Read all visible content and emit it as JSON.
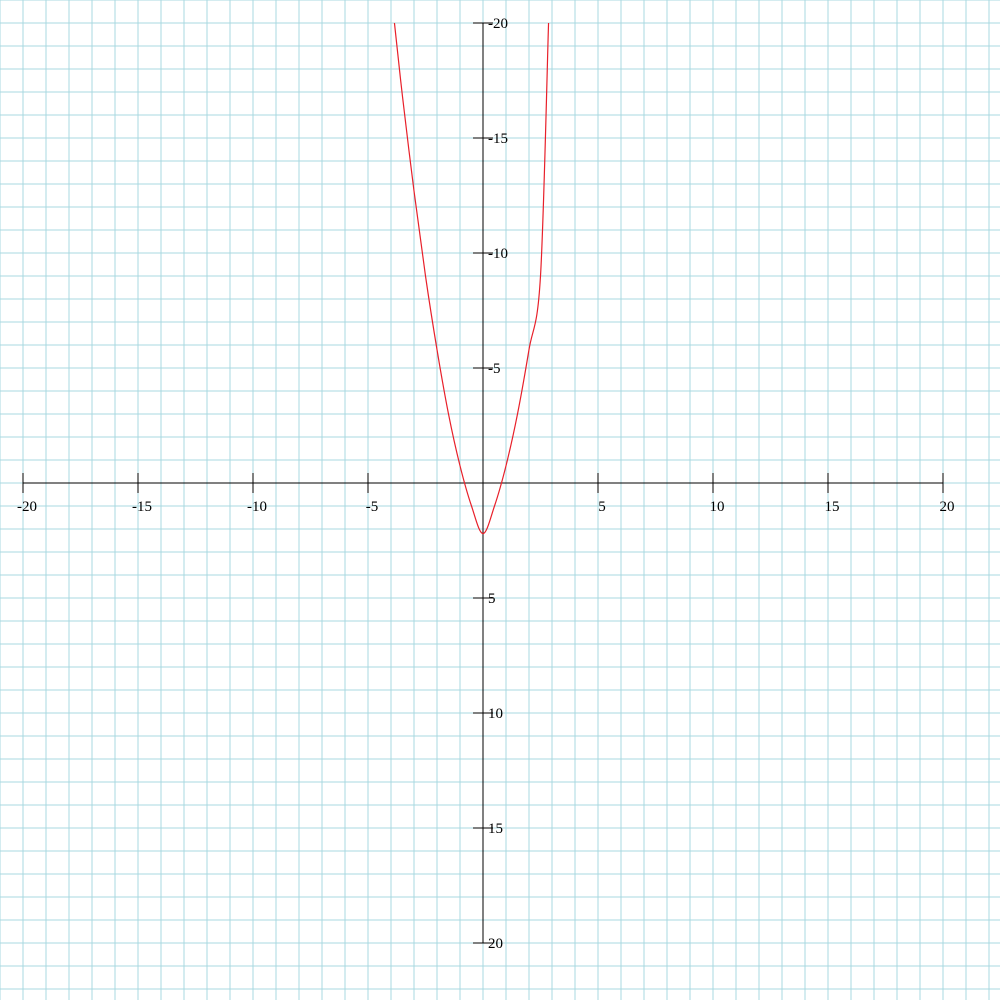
{
  "colors": {
    "grid": "#a8d8e0",
    "axis": "#000000",
    "curve": "#e8202a",
    "background": "#ffffff"
  },
  "chart_data": {
    "type": "line",
    "title": "",
    "xlabel": "",
    "ylabel": "",
    "xlim": [
      -20,
      20
    ],
    "ylim": [
      -20,
      20
    ],
    "grid": true,
    "y_axis_inverted": true,
    "x_ticks": [
      -20,
      -15,
      -10,
      -5,
      5,
      10,
      15,
      20
    ],
    "x_tick_labels": [
      "-20",
      "-15",
      "-10",
      "-5",
      "5",
      "10",
      "15",
      "20"
    ],
    "y_ticks": [
      -20,
      -15,
      -10,
      -5,
      5,
      10,
      15,
      20
    ],
    "y_tick_labels": [
      "-20",
      "-15",
      "-10",
      "-5",
      "5",
      "10",
      "15",
      "20"
    ],
    "series": [
      {
        "values_description": "parabola opening toward top of page",
        "x": [
          -3.85,
          -3.5,
          -3.0,
          -2.5,
          -2.0,
          -1.5,
          -1.0,
          -0.5,
          0.0,
          0.5,
          1.0,
          1.5,
          2.0,
          2.5,
          2.85
        ],
        "y": [
          -20.0,
          -16.8,
          -12.7,
          -9.0,
          -5.8,
          -3.0,
          -0.75,
          1.0,
          2.2,
          1.0,
          -0.75,
          -3.0,
          -5.8,
          -9.0,
          -20.0
        ]
      }
    ]
  }
}
